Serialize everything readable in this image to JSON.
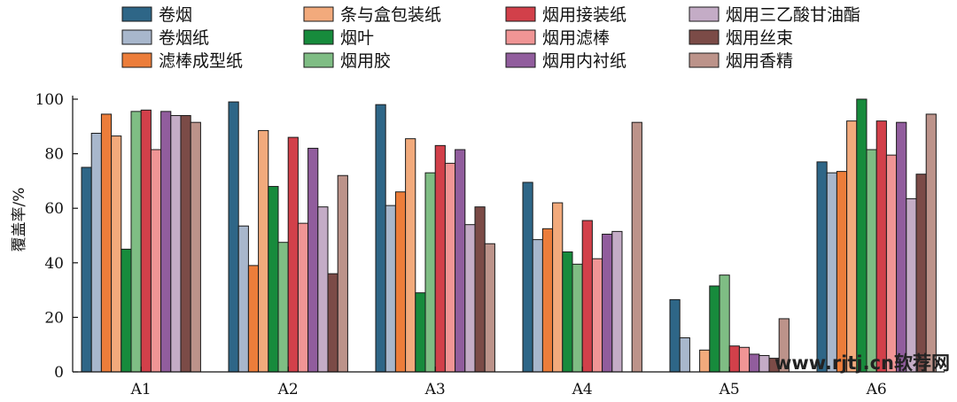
{
  "chart_data": {
    "type": "bar",
    "title": "",
    "xlabel": "",
    "ylabel": "覆盖率/%",
    "ylim": [
      0,
      100
    ],
    "yticks": [
      0,
      20,
      40,
      60,
      80,
      100
    ],
    "grid": false,
    "legend_position": "top",
    "categories": [
      "A1",
      "A2",
      "A3",
      "A4",
      "A5",
      "A6"
    ],
    "series": [
      {
        "name": "卷烟",
        "color": "#2e6687",
        "values": [
          75,
          99,
          98,
          69.5,
          26.5,
          77
        ]
      },
      {
        "name": "卷烟纸",
        "color": "#a8b7cc",
        "values": [
          87.5,
          53.5,
          61,
          48.5,
          12.5,
          73
        ]
      },
      {
        "name": "滤棒成型纸",
        "color": "#ec7d3a",
        "values": [
          94.5,
          39,
          66,
          52.5,
          0,
          73.5
        ]
      },
      {
        "name": "条与盒包装纸",
        "color": "#f2aa7c",
        "values": [
          86.5,
          88.5,
          85.5,
          62,
          8,
          92
        ]
      },
      {
        "name": "烟叶",
        "color": "#178b3c",
        "values": [
          45,
          68,
          29,
          44,
          31.5,
          100
        ]
      },
      {
        "name": "烟用胶",
        "color": "#7fbd84",
        "values": [
          95.5,
          47.5,
          73,
          39.5,
          35.5,
          81.5
        ]
      },
      {
        "name": "烟用接装纸",
        "color": "#d2404a",
        "values": [
          96,
          86,
          83,
          55.5,
          9.5,
          92
        ]
      },
      {
        "name": "烟用滤棒",
        "color": "#f09595",
        "values": [
          81.5,
          54.5,
          76.5,
          41.5,
          9,
          79.5
        ]
      },
      {
        "name": "烟用内衬纸",
        "color": "#915d9d",
        "values": [
          95.5,
          82,
          81.5,
          50.5,
          6.5,
          91.5
        ]
      },
      {
        "name": "烟用三乙酸甘油酯",
        "color": "#c4acc6",
        "values": [
          94,
          60.5,
          54,
          51.5,
          6,
          63.5
        ]
      },
      {
        "name": "烟用丝束",
        "color": "#7b4b47",
        "values": [
          94,
          36,
          60.5,
          0,
          5,
          72.5
        ]
      },
      {
        "name": "烟用香精",
        "color": "#bc938a",
        "values": [
          91.5,
          72,
          47,
          91.5,
          19.5,
          94.5
        ]
      }
    ]
  },
  "watermark": "www.rjtj.cn软荐网"
}
